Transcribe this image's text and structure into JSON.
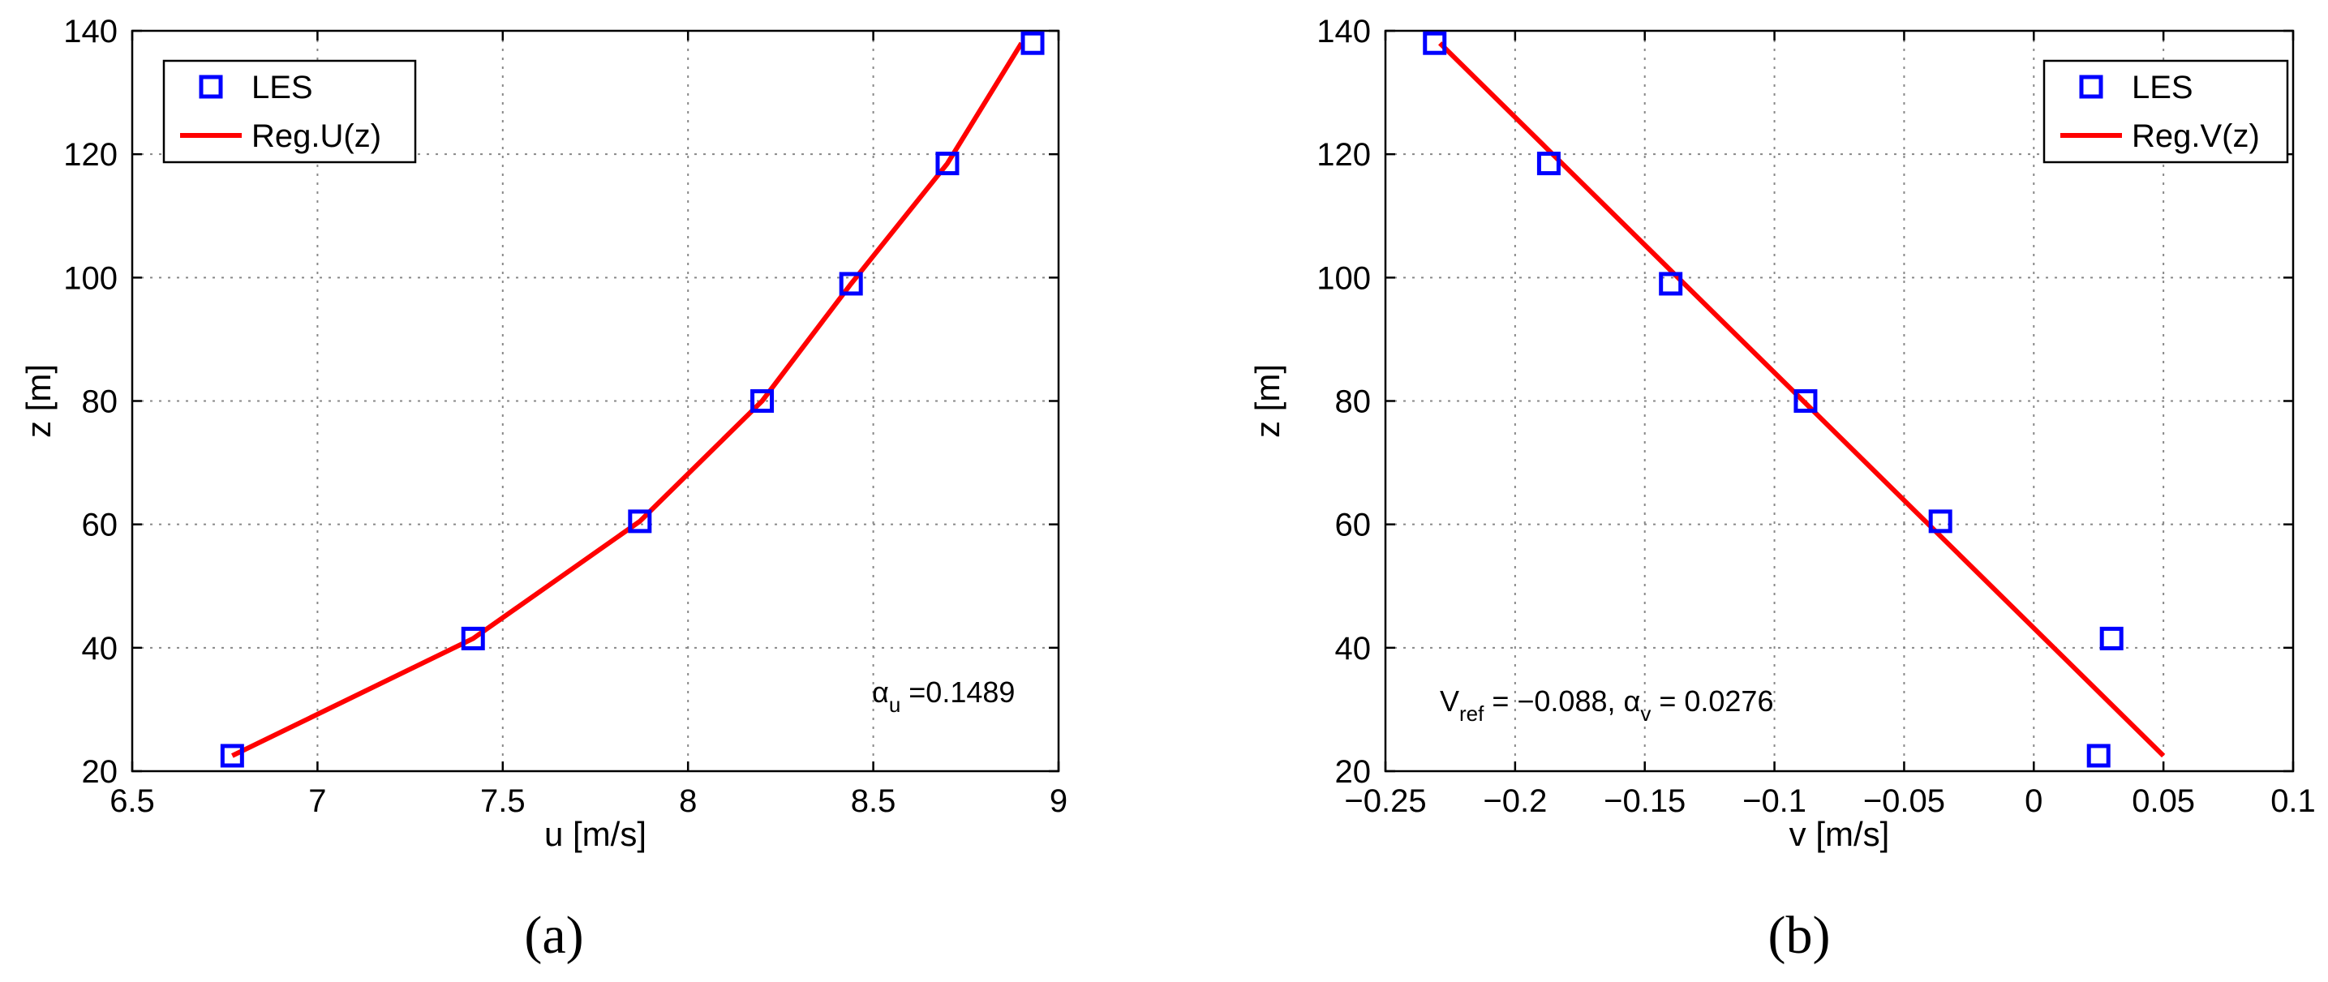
{
  "chart_data": [
    {
      "type": "line",
      "panel_label": "(a)",
      "xlabel": "u [m/s]",
      "ylabel": "z [m]",
      "xlim": [
        6.5,
        9
      ],
      "ylim": [
        20,
        140
      ],
      "x_ticks": [
        "6.5",
        "7",
        "7.5",
        "8",
        "8.5",
        "9"
      ],
      "y_ticks": [
        "20",
        "40",
        "60",
        "80",
        "100",
        "120",
        "140"
      ],
      "grid": true,
      "legend_position": "top-left",
      "annotation": {
        "symbol": "α",
        "sub": "u",
        "text": " =0.1489"
      },
      "series": [
        {
          "name": "LES",
          "style": "markers",
          "color": "#0000ff",
          "marker": "square",
          "x": [
            6.77,
            7.42,
            7.87,
            8.2,
            8.44,
            8.7,
            8.93
          ],
          "y": [
            22.5,
            41.5,
            60.5,
            80,
            99,
            118.5,
            138
          ]
        },
        {
          "name": "Reg.U(z)",
          "style": "line",
          "color": "#ff0000",
          "x": [
            6.77,
            7.42,
            7.87,
            8.2,
            8.44,
            8.7,
            8.9
          ],
          "y": [
            22.5,
            41.5,
            60.5,
            80,
            99,
            118.5,
            138
          ]
        }
      ]
    },
    {
      "type": "line",
      "panel_label": "(b)",
      "xlabel": "v [m/s]",
      "ylabel": "z [m]",
      "xlim": [
        -0.25,
        0.1
      ],
      "ylim": [
        20,
        140
      ],
      "x_ticks": [
        "−0.25",
        "−0.2",
        "−0.15",
        "−0.1",
        "−0.05",
        "0",
        "0.05",
        "0.1"
      ],
      "y_ticks": [
        "20",
        "40",
        "60",
        "80",
        "100",
        "120",
        "140"
      ],
      "grid": true,
      "legend_position": "top-right",
      "annotation": {
        "prefix": "V",
        "sub": "ref",
        "mid": " = −0.088, ",
        "symbol": "α",
        "sub2": "v",
        "suffix": " = 0.0276"
      },
      "series": [
        {
          "name": "LES",
          "style": "markers",
          "color": "#0000ff",
          "marker": "square",
          "x": [
            -0.231,
            -0.187,
            -0.14,
            -0.088,
            -0.036,
            0.03,
            0.025
          ],
          "y": [
            138,
            118.5,
            99,
            80,
            60.5,
            41.5,
            22.5
          ]
        },
        {
          "name": "Reg.V(z)",
          "style": "line",
          "color": "#ff0000",
          "x": [
            -0.229,
            0.05
          ],
          "y": [
            138,
            22.5
          ]
        }
      ]
    }
  ]
}
